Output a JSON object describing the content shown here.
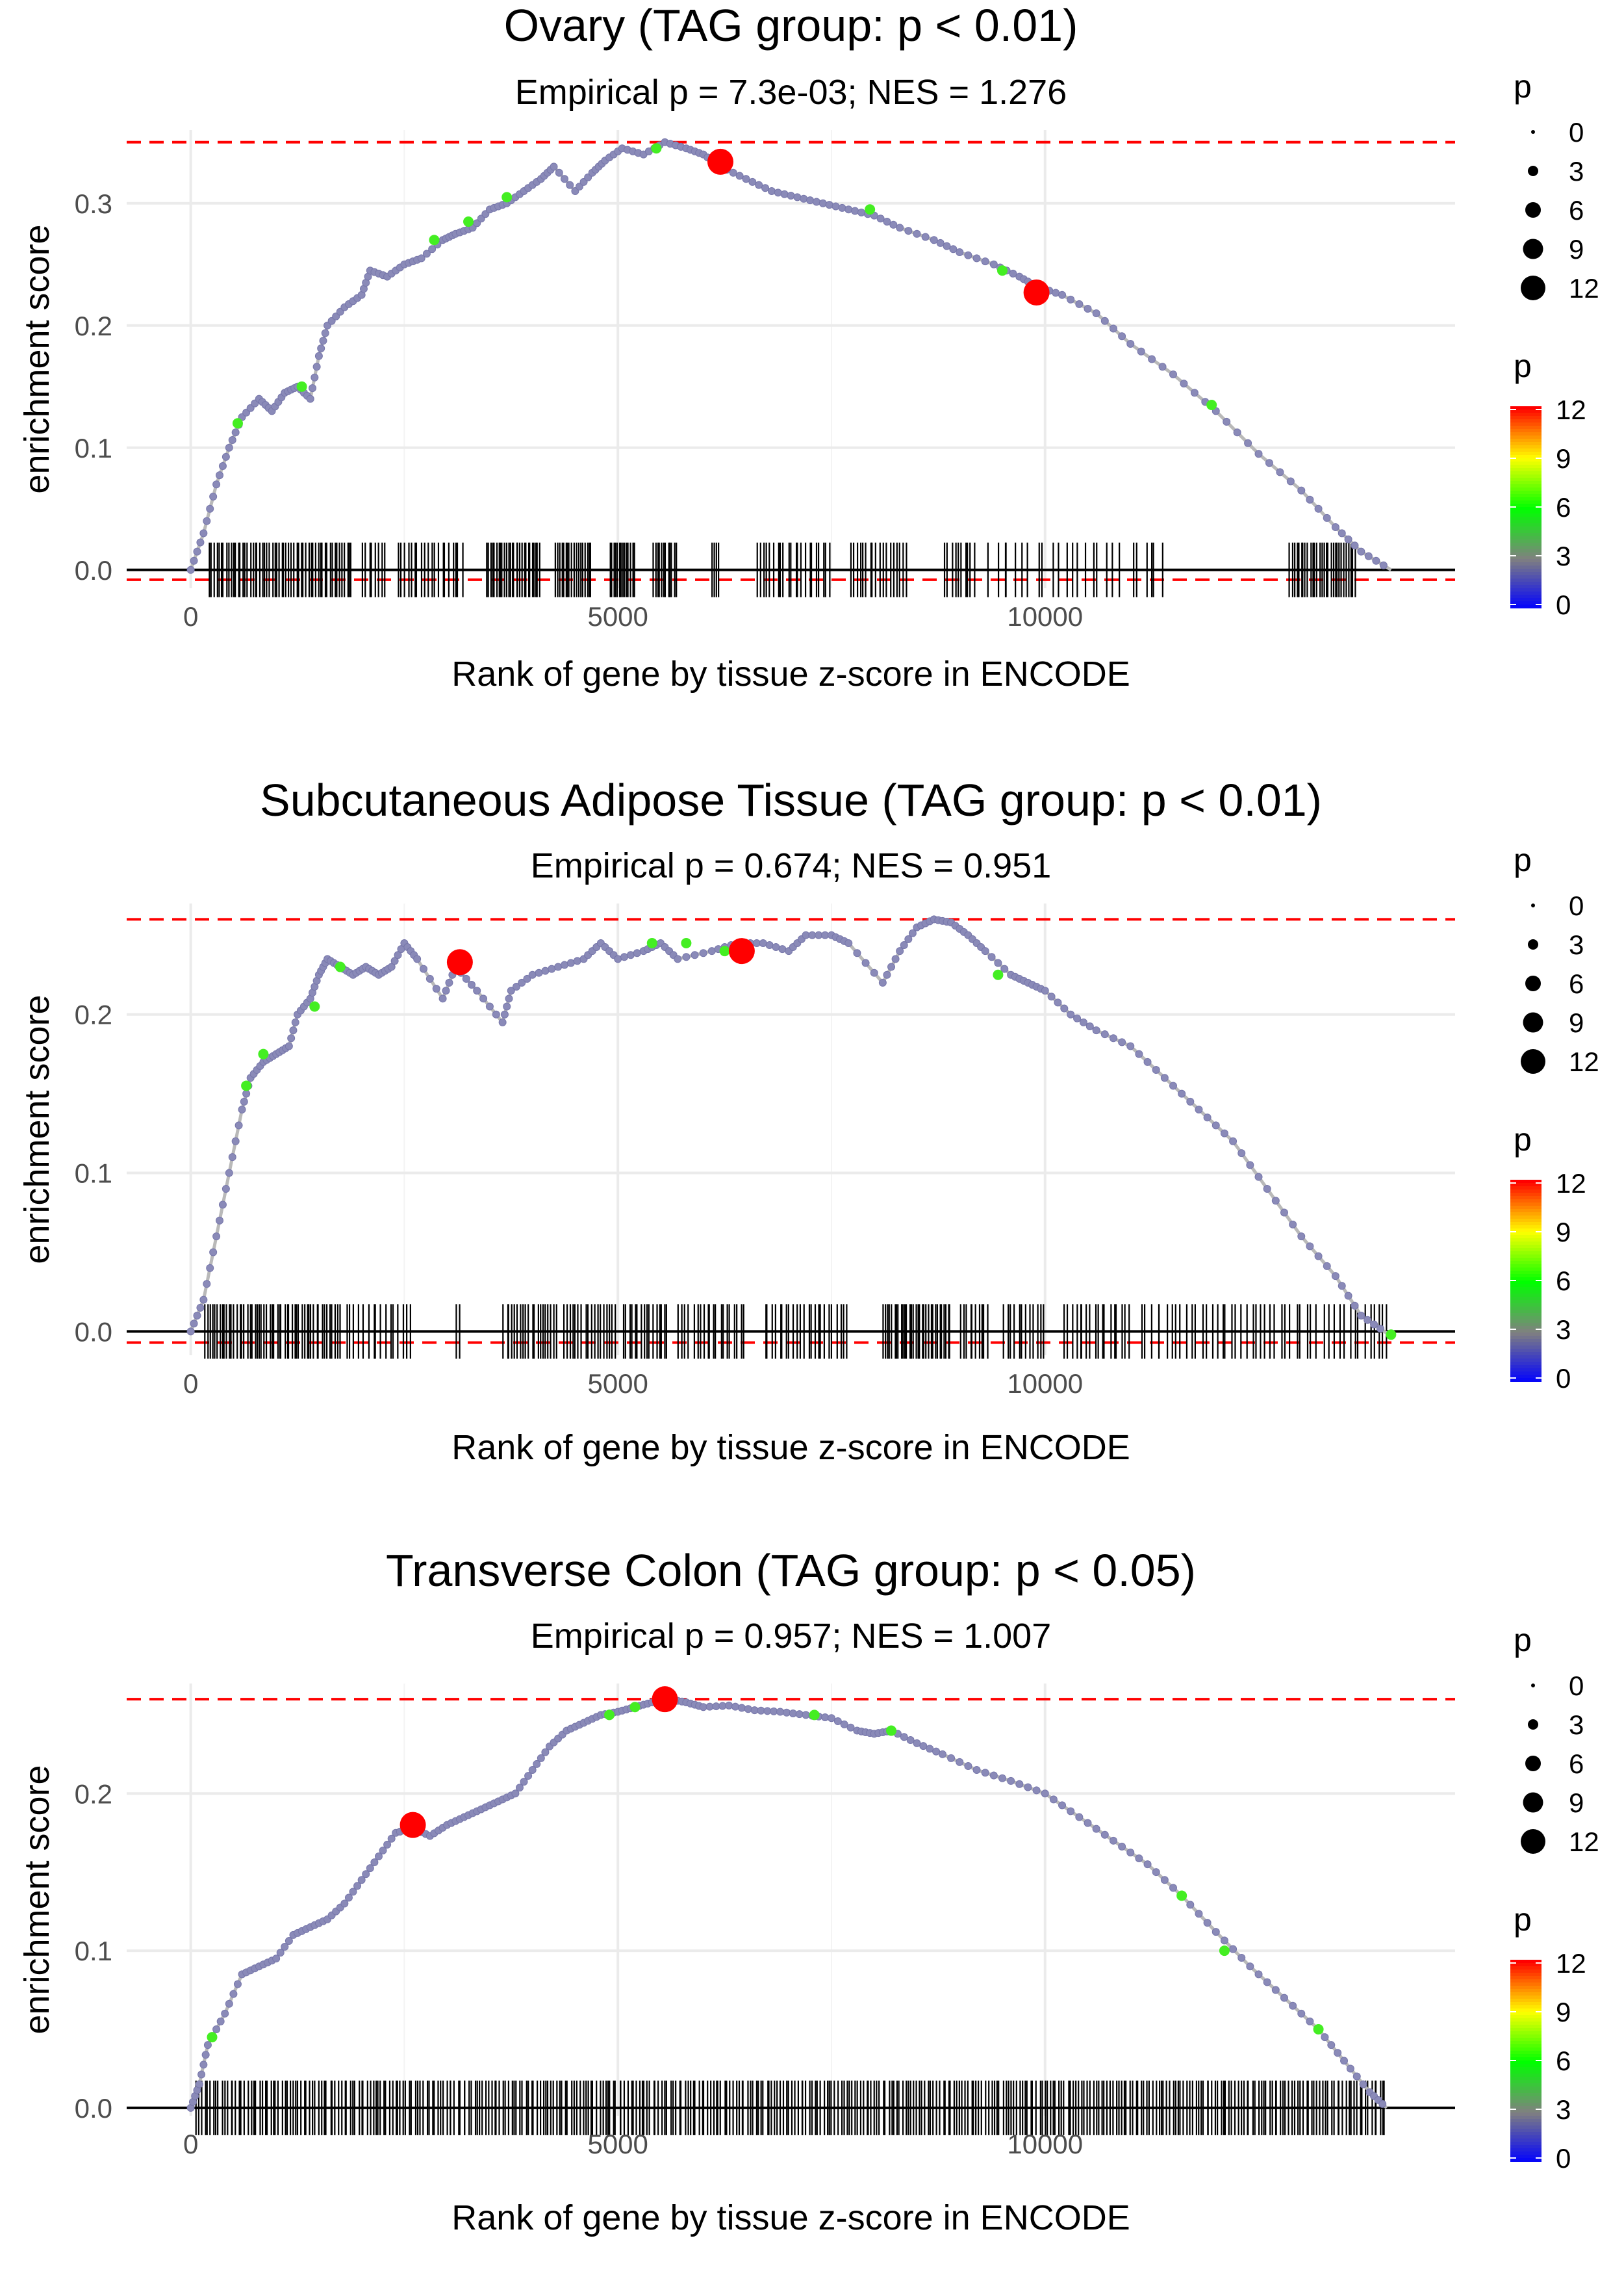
{
  "chart_data": [
    {
      "type": "line",
      "title": "Ovary (TAG group: p < 0.01)",
      "subtitle": "Empirical p = 7.3e-03; NES = 1.276",
      "xlabel": "Rank of gene by tissue z-score in ENCODE",
      "ylabel": "enrichment score",
      "xlim": [
        -750,
        14800
      ],
      "ylim": [
        -0.015,
        0.36
      ],
      "x_ticks": [
        0,
        5000,
        10000
      ],
      "x_tick_labels": [
        "0",
        "5000",
        "10000"
      ],
      "y_ticks": [
        0.0,
        0.1,
        0.2,
        0.3
      ],
      "y_tick_labels": [
        "0.0",
        "0.1",
        "0.2",
        "0.3"
      ],
      "es_max": 0.35,
      "es_min": -0.008,
      "curve": [
        [
          0,
          0
        ],
        [
          150,
          0.03
        ],
        [
          300,
          0.07
        ],
        [
          450,
          0.1
        ],
        [
          600,
          0.125
        ],
        [
          800,
          0.14
        ],
        [
          950,
          0.13
        ],
        [
          1100,
          0.145
        ],
        [
          1250,
          0.15
        ],
        [
          1400,
          0.14
        ],
        [
          1500,
          0.175
        ],
        [
          1600,
          0.2
        ],
        [
          1800,
          0.215
        ],
        [
          2000,
          0.225
        ],
        [
          2100,
          0.245
        ],
        [
          2300,
          0.24
        ],
        [
          2500,
          0.25
        ],
        [
          2700,
          0.255
        ],
        [
          2950,
          0.27
        ],
        [
          3100,
          0.275
        ],
        [
          3300,
          0.28
        ],
        [
          3500,
          0.295
        ],
        [
          3700,
          0.3
        ],
        [
          3900,
          0.31
        ],
        [
          4100,
          0.32
        ],
        [
          4250,
          0.33
        ],
        [
          4500,
          0.31
        ],
        [
          4700,
          0.325
        ],
        [
          4850,
          0.335
        ],
        [
          5050,
          0.345
        ],
        [
          5300,
          0.34
        ],
        [
          5550,
          0.35
        ],
        [
          5800,
          0.345
        ],
        [
          6000,
          0.34
        ],
        [
          6200,
          0.33
        ],
        [
          6500,
          0.32
        ],
        [
          6800,
          0.31
        ],
        [
          7100,
          0.305
        ],
        [
          7400,
          0.3
        ],
        [
          7700,
          0.295
        ],
        [
          8000,
          0.29
        ],
        [
          8300,
          0.28
        ],
        [
          8700,
          0.27
        ],
        [
          9000,
          0.26
        ],
        [
          9400,
          0.25
        ],
        [
          9700,
          0.24
        ],
        [
          9900,
          0.232
        ],
        [
          10200,
          0.225
        ],
        [
          10600,
          0.21
        ],
        [
          11000,
          0.185
        ],
        [
          11500,
          0.16
        ],
        [
          12000,
          0.13
        ],
        [
          12500,
          0.095
        ],
        [
          13000,
          0.065
        ],
        [
          13400,
          0.035
        ],
        [
          13700,
          0.015
        ],
        [
          14050,
          0.0
        ]
      ],
      "highlight_points": [
        {
          "x": 6200,
          "y": 0.334,
          "p": 12
        },
        {
          "x": 9900,
          "y": 0.227,
          "p": 12
        }
      ],
      "green_points": [
        [
          550,
          0.12
        ],
        [
          1300,
          0.15
        ],
        [
          2850,
          0.27
        ],
        [
          3250,
          0.285
        ],
        [
          3700,
          0.305
        ],
        [
          5450,
          0.345
        ],
        [
          7950,
          0.295
        ],
        [
          9500,
          0.245
        ],
        [
          11950,
          0.135
        ]
      ],
      "rug_segments": [
        [
          200,
          1900,
          60
        ],
        [
          2000,
          2300,
          8
        ],
        [
          2400,
          3200,
          20
        ],
        [
          3450,
          4100,
          28
        ],
        [
          4250,
          4700,
          18
        ],
        [
          4900,
          5200,
          14
        ],
        [
          5400,
          5700,
          12
        ],
        [
          6100,
          6200,
          4
        ],
        [
          6600,
          7500,
          22
        ],
        [
          7700,
          8400,
          18
        ],
        [
          8800,
          9200,
          10
        ],
        [
          9300,
          10900,
          20
        ],
        [
          11000,
          11400,
          6
        ],
        [
          12850,
          13650,
          30
        ]
      ],
      "legend_size": {
        "title": "p",
        "breaks": [
          "0",
          "3",
          "6",
          "9",
          "12"
        ]
      },
      "legend_color": {
        "title": "p",
        "breaks": [
          "0",
          "3",
          "6",
          "9",
          "12"
        ],
        "colors": [
          "#0000ff",
          "#808080",
          "#00ff00",
          "#ffff00",
          "#ff0000"
        ]
      }
    },
    {
      "type": "line",
      "title": "Subcutaneous Adipose Tissue (TAG group: p < 0.01)",
      "subtitle": "Empirical p = 0.674; NES = 0.951",
      "xlabel": "Rank of gene by tissue z-score in ENCODE",
      "ylabel": "enrichment score",
      "xlim": [
        -750,
        14800
      ],
      "ylim": [
        -0.015,
        0.27
      ],
      "x_ticks": [
        0,
        5000,
        10000
      ],
      "x_tick_labels": [
        "0",
        "5000",
        "10000"
      ],
      "y_ticks": [
        0.0,
        0.1,
        0.2
      ],
      "y_tick_labels": [
        "0.0",
        "0.1",
        "0.2"
      ],
      "es_max": 0.26,
      "es_min": -0.007,
      "curve": [
        [
          0,
          0
        ],
        [
          150,
          0.02
        ],
        [
          300,
          0.06
        ],
        [
          450,
          0.1
        ],
        [
          600,
          0.14
        ],
        [
          700,
          0.16
        ],
        [
          850,
          0.17
        ],
        [
          1000,
          0.175
        ],
        [
          1150,
          0.18
        ],
        [
          1250,
          0.2
        ],
        [
          1400,
          0.21
        ],
        [
          1500,
          0.225
        ],
        [
          1600,
          0.235
        ],
        [
          1750,
          0.23
        ],
        [
          1900,
          0.225
        ],
        [
          2050,
          0.23
        ],
        [
          2200,
          0.225
        ],
        [
          2350,
          0.23
        ],
        [
          2500,
          0.245
        ],
        [
          2650,
          0.235
        ],
        [
          2950,
          0.21
        ],
        [
          3100,
          0.23
        ],
        [
          3350,
          0.215
        ],
        [
          3650,
          0.195
        ],
        [
          3750,
          0.215
        ],
        [
          4000,
          0.225
        ],
        [
          4300,
          0.23
        ],
        [
          4600,
          0.235
        ],
        [
          4800,
          0.245
        ],
        [
          5000,
          0.235
        ],
        [
          5300,
          0.24
        ],
        [
          5500,
          0.245
        ],
        [
          5700,
          0.235
        ],
        [
          6100,
          0.24
        ],
        [
          6400,
          0.245
        ],
        [
          6700,
          0.245
        ],
        [
          7000,
          0.24
        ],
        [
          7200,
          0.25
        ],
        [
          7500,
          0.25
        ],
        [
          7700,
          0.245
        ],
        [
          8100,
          0.22
        ],
        [
          8300,
          0.24
        ],
        [
          8500,
          0.255
        ],
        [
          8700,
          0.26
        ],
        [
          8900,
          0.258
        ],
        [
          9100,
          0.25
        ],
        [
          9300,
          0.24
        ],
        [
          9600,
          0.225
        ],
        [
          9800,
          0.22
        ],
        [
          10000,
          0.215
        ],
        [
          10300,
          0.2
        ],
        [
          10600,
          0.19
        ],
        [
          11000,
          0.18
        ],
        [
          11400,
          0.16
        ],
        [
          11800,
          0.14
        ],
        [
          12200,
          0.12
        ],
        [
          12600,
          0.09
        ],
        [
          13000,
          0.06
        ],
        [
          13400,
          0.035
        ],
        [
          13700,
          0.01
        ],
        [
          14000,
          -0.001
        ]
      ],
      "highlight_points": [
        {
          "x": 3150,
          "y": 0.233,
          "p": 12
        },
        {
          "x": 6450,
          "y": 0.24,
          "p": 12
        }
      ],
      "green_points": [
        [
          650,
          0.155
        ],
        [
          850,
          0.175
        ],
        [
          1450,
          0.205
        ],
        [
          1750,
          0.23
        ],
        [
          5400,
          0.245
        ],
        [
          5800,
          0.245
        ],
        [
          6250,
          0.24
        ],
        [
          9450,
          0.225
        ],
        [
          14050,
          -0.002
        ]
      ],
      "rug_segments": [
        [
          150,
          1750,
          55
        ],
        [
          1800,
          2600,
          16
        ],
        [
          3100,
          3150,
          2
        ],
        [
          3650,
          4300,
          20
        ],
        [
          4350,
          5000,
          18
        ],
        [
          5050,
          5600,
          16
        ],
        [
          5700,
          6500,
          20
        ],
        [
          6700,
          7700,
          24
        ],
        [
          8100,
          8900,
          32
        ],
        [
          9000,
          9350,
          10
        ],
        [
          9500,
          10000,
          12
        ],
        [
          10200,
          11000,
          18
        ],
        [
          11100,
          13200,
          36
        ],
        [
          13250,
          14050,
          14
        ]
      ],
      "legend_size": {
        "title": "p",
        "breaks": [
          "0",
          "3",
          "6",
          "9",
          "12"
        ]
      },
      "legend_color": {
        "title": "p",
        "breaks": [
          "0",
          "3",
          "6",
          "9",
          "12"
        ],
        "colors": [
          "#0000ff",
          "#808080",
          "#00ff00",
          "#ffff00",
          "#ff0000"
        ]
      }
    },
    {
      "type": "line",
      "title": "Transverse Colon (TAG group: p < 0.05)",
      "subtitle": "Empirical p = 0.957; NES = 1.007",
      "xlabel": "Rank of gene by tissue z-score in ENCODE",
      "ylabel": "enrichment score",
      "xlim": [
        -750,
        14800
      ],
      "ylim": [
        -0.005,
        0.27
      ],
      "x_ticks": [
        0,
        5000,
        10000
      ],
      "x_tick_labels": [
        "0",
        "5000",
        "10000"
      ],
      "y_ticks": [
        0.0,
        0.1,
        0.2
      ],
      "y_tick_labels": [
        "0.0",
        "0.1",
        "0.2"
      ],
      "es_max": 0.26,
      "es_min": null,
      "curve": [
        [
          0,
          0
        ],
        [
          100,
          0.015
        ],
        [
          200,
          0.04
        ],
        [
          400,
          0.06
        ],
        [
          600,
          0.085
        ],
        [
          800,
          0.09
        ],
        [
          1000,
          0.095
        ],
        [
          1200,
          0.11
        ],
        [
          1400,
          0.115
        ],
        [
          1600,
          0.12
        ],
        [
          1800,
          0.13
        ],
        [
          2000,
          0.145
        ],
        [
          2200,
          0.16
        ],
        [
          2400,
          0.175
        ],
        [
          2600,
          0.178
        ],
        [
          2800,
          0.173
        ],
        [
          3000,
          0.18
        ],
        [
          3200,
          0.185
        ],
        [
          3400,
          0.19
        ],
        [
          3600,
          0.195
        ],
        [
          3800,
          0.2
        ],
        [
          4000,
          0.215
        ],
        [
          4200,
          0.23
        ],
        [
          4400,
          0.24
        ],
        [
          4600,
          0.245
        ],
        [
          4800,
          0.25
        ],
        [
          5000,
          0.252
        ],
        [
          5200,
          0.255
        ],
        [
          5400,
          0.258
        ],
        [
          5600,
          0.26
        ],
        [
          5800,
          0.258
        ],
        [
          6000,
          0.255
        ],
        [
          6300,
          0.256
        ],
        [
          6600,
          0.253
        ],
        [
          6900,
          0.252
        ],
        [
          7200,
          0.25
        ],
        [
          7500,
          0.248
        ],
        [
          7800,
          0.24
        ],
        [
          8000,
          0.238
        ],
        [
          8200,
          0.24
        ],
        [
          8500,
          0.232
        ],
        [
          8800,
          0.225
        ],
        [
          9200,
          0.215
        ],
        [
          9600,
          0.208
        ],
        [
          10000,
          0.2
        ],
        [
          10400,
          0.185
        ],
        [
          10800,
          0.17
        ],
        [
          11200,
          0.155
        ],
        [
          11600,
          0.135
        ],
        [
          12000,
          0.112
        ],
        [
          12400,
          0.09
        ],
        [
          12800,
          0.07
        ],
        [
          13200,
          0.05
        ],
        [
          13500,
          0.03
        ],
        [
          13800,
          0.01
        ],
        [
          14000,
          0.0
        ]
      ],
      "highlight_points": [
        {
          "x": 2600,
          "y": 0.18,
          "p": 12
        },
        {
          "x": 5550,
          "y": 0.26,
          "p": 12
        }
      ],
      "green_points": [
        [
          250,
          0.045
        ],
        [
          4900,
          0.25
        ],
        [
          5200,
          0.255
        ],
        [
          7300,
          0.25
        ],
        [
          8200,
          0.24
        ],
        [
          11600,
          0.135
        ],
        [
          12100,
          0.1
        ],
        [
          13200,
          0.05
        ]
      ],
      "rug_segments": [
        [
          50,
          14000,
          420
        ]
      ],
      "legend_size": {
        "title": "p",
        "breaks": [
          "0",
          "3",
          "6",
          "9",
          "12"
        ]
      },
      "legend_color": {
        "title": "p",
        "breaks": [
          "0",
          "3",
          "6",
          "9",
          "12"
        ],
        "colors": [
          "#0000ff",
          "#808080",
          "#00ff00",
          "#ffff00",
          "#ff0000"
        ]
      }
    }
  ]
}
